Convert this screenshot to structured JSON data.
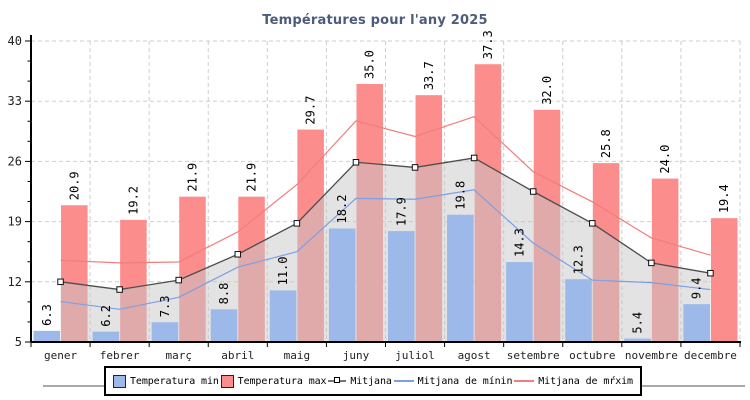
{
  "title": "Températures pour l'any 2025",
  "colors": {
    "title_text": "#4d5b7c",
    "axis_text": "#222222",
    "grid": "#cdcdcd",
    "band_fill": "#c8c8c8",
    "temp_min_bar": "#9cb9e9",
    "temp_max_bar": "#fb8d8d",
    "mitjana_line": "#4d4d4d",
    "mitjana_min_line": "#7d9fe3",
    "mitjana_max_line": "#f27d7d"
  },
  "chart_data": {
    "type": "bar+line",
    "title": "Températures pour l'any 2025",
    "categories": [
      "gener",
      "febrer",
      "març",
      "abril",
      "maig",
      "juny",
      "juliol",
      "agost",
      "setembre",
      "octubre",
      "novembre",
      "decembre"
    ],
    "series": [
      {
        "name": "Temperatura min",
        "type": "bar",
        "color": "#9cb9e9",
        "values": [
          6.3,
          6.2,
          7.3,
          8.8,
          11.0,
          18.2,
          17.9,
          19.8,
          14.3,
          12.3,
          5.4,
          9.4
        ]
      },
      {
        "name": "Temperatura max",
        "type": "bar",
        "color": "#fb8d8d",
        "values": [
          20.9,
          19.2,
          21.9,
          21.9,
          29.7,
          35.0,
          33.7,
          37.3,
          32.0,
          25.8,
          24.0,
          19.4
        ]
      },
      {
        "name": "Mitjana",
        "type": "line",
        "marker": "square",
        "color": "#4d4d4d",
        "values": [
          12.0,
          11.1,
          12.2,
          15.2,
          18.8,
          25.9,
          25.3,
          26.4,
          22.5,
          18.8,
          14.2,
          13.0
        ]
      },
      {
        "name": "Mitjana de mínin",
        "type": "line",
        "color": "#7d9fe3",
        "values": [
          9.7,
          8.8,
          10.2,
          13.7,
          15.5,
          21.7,
          21.6,
          22.7,
          16.5,
          12.2,
          11.9,
          11.1
        ]
      },
      {
        "name": "Mitjana de mŕxim",
        "type": "line",
        "color": "#f27d7d",
        "values": [
          14.5,
          14.2,
          14.3,
          17.8,
          23.3,
          30.7,
          28.9,
          31.2,
          24.8,
          21.3,
          17.1,
          15.1
        ]
      }
    ],
    "ylim": [
      5,
      40
    ],
    "yticks": [
      40,
      33,
      26,
      19,
      12,
      5
    ],
    "grid": true,
    "bar_value_labels": "one decimal, rotated vertical above each bar",
    "shaded_band": "gray area under Mitjana line down to x-axis",
    "legend_position": "bottom"
  },
  "legend": {
    "items": [
      {
        "label": "Temperatura min",
        "swatch": "box",
        "color": "#9cb9e9"
      },
      {
        "label": "Temperatura max",
        "swatch": "box",
        "color": "#fb8d8d"
      },
      {
        "label": "Mitjana",
        "swatch": "marker",
        "color": "#4d4d4d"
      },
      {
        "label": "Mitjana de mínin",
        "swatch": "line",
        "color": "#7d9fe3"
      },
      {
        "label": "Mitjana de mŕxim",
        "swatch": "line",
        "color": "#f27d7d"
      }
    ]
  }
}
